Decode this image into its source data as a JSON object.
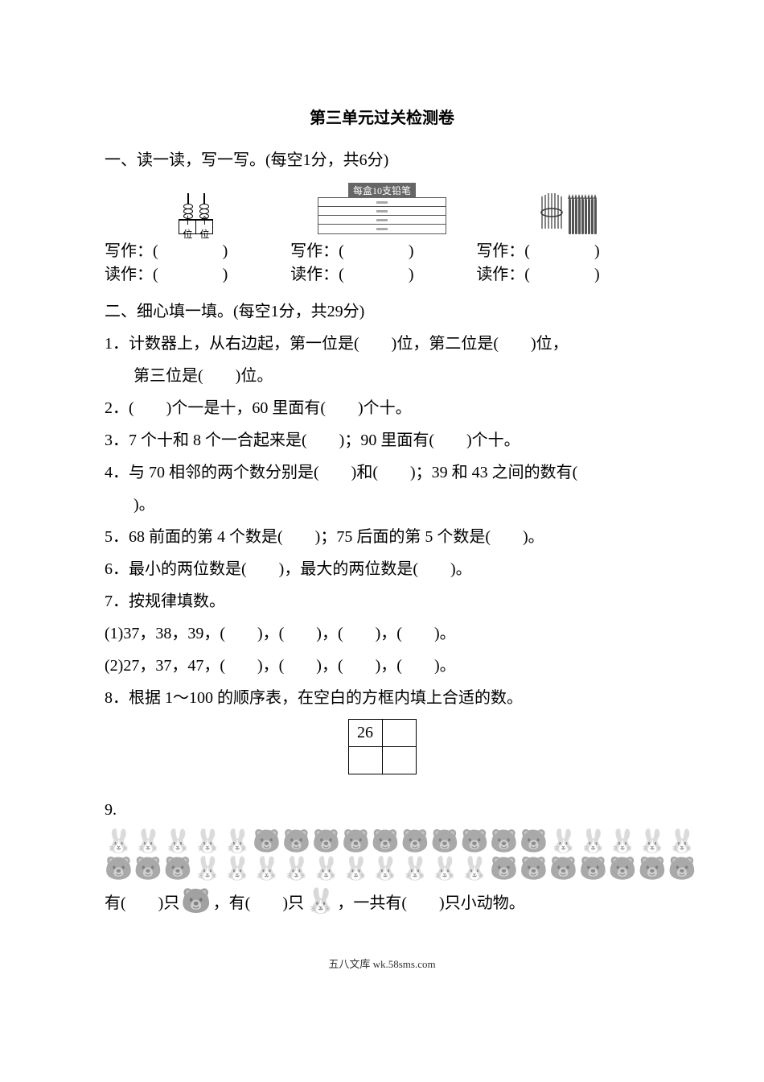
{
  "title": "第三单元过关检测卷",
  "sec1": {
    "heading": "一、读一读，写一写。(每空1分，共6分)",
    "abacus_labels": {
      "tens": "十位",
      "ones": "个位"
    },
    "pencil_tag": "每盒10支铅笔",
    "write_label": "写作：(",
    "read_label": "读作：(",
    "close": ")"
  },
  "sec2": {
    "heading": "二、细心填一填。(每空1分，共29分)",
    "q1a": "1．计数器上，从右边起，第一位是(　　)位，第二位是(　　)位，",
    "q1b": "第三位是(　　)位。",
    "q2": "2．(　　)个一是十，60 里面有(　　)个十。",
    "q3": "3．7 个十和 8 个一合起来是(　　)；90 里面有(　　)个十。",
    "q4a": "4．与 70 相邻的两个数分别是(　　)和(　　)；39 和 43 之间的数有(",
    "q4b": ")。",
    "q5": "5．68 前面的第 4 个数是(　　)；75 后面的第 5 个数是(　　)。",
    "q6": "6．最小的两位数是(　　)，最大的两位数是(　　)。",
    "q7": "7．按规律填数。",
    "q7_1": "(1)37，38，39，(　　)，(　　)，(　　)，(　　)。",
    "q7_2": "(2)27，37，47，(　　)，(　　)，(　　)，(　　)。",
    "q8": "8．根据 1～100 的顺序表，在空白的方框内填上合适的数。",
    "grid_value": "26",
    "q9": "9.",
    "q9_last_a": "有(　　)只",
    "q9_last_b": "，有(　　)只",
    "q9_last_c": "，一共有(　　)只小动物。"
  },
  "animals": {
    "row1": [
      "🐰",
      "🐰",
      "🐰",
      "🐰",
      "🐰",
      "🐻",
      "🐻",
      "🐻",
      "🐻",
      "🐻",
      "🐻",
      "🐻",
      "🐻",
      "🐻",
      "🐻",
      "🐰",
      "🐰",
      "🐰",
      "🐰",
      "🐰"
    ],
    "row2": [
      "🐻",
      "🐻",
      "🐻",
      "🐰",
      "🐰",
      "🐰",
      "🐰",
      "🐰",
      "🐰",
      "🐰",
      "🐰",
      "🐰",
      "🐰",
      "🐻",
      "🐻",
      "🐻",
      "🐻",
      "🐻",
      "🐻",
      "🐻"
    ],
    "bear": "🐻",
    "rabbit": "🐰"
  },
  "footer": "五八文库 wk.58sms.com",
  "colors": {
    "text": "#000000",
    "background": "#ffffff",
    "img_gray": "#666666"
  }
}
